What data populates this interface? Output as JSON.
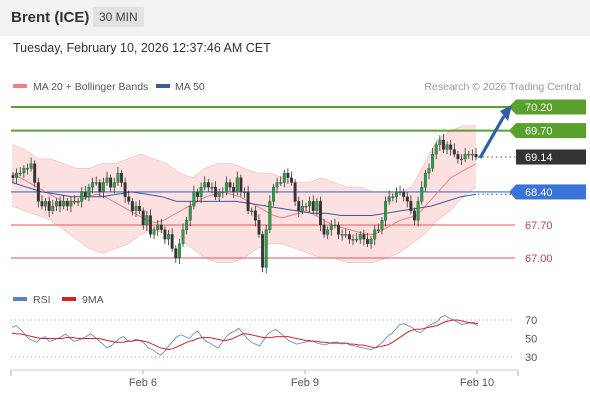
{
  "header": {
    "instrument": "Brent (ICE)",
    "timeframe": "30 MIN"
  },
  "timestamp": "Tuesday, February 10, 2026 12:37:46 AM CET",
  "legend": {
    "ma20": "MA 20 + Bollinger Bands",
    "ma50": "MA 50",
    "rsi": "RSI",
    "ma9": "9MA",
    "ma20_color": "#f08080",
    "ma50_color": "#3c5a99",
    "rsi_color": "#5b7fd6",
    "ma9_color": "#e02020"
  },
  "copyright": "Research © 2026 Trading Central",
  "chart_data": {
    "type": "line",
    "instrument": "Brent (ICE)",
    "timeframe": "30 MIN",
    "x_ticks": [
      "Feb 6",
      "Feb 9",
      "Feb 10"
    ],
    "price_range": [
      66.6,
      70.35
    ],
    "levels": [
      {
        "label": "70.20",
        "value": 70.2,
        "kind": "resistance",
        "color": "#5aa02c"
      },
      {
        "label": "69.70",
        "value": 69.7,
        "kind": "resistance",
        "color": "#5aa02c"
      },
      {
        "label": "69.14",
        "value": 69.14,
        "kind": "last",
        "color": "#333333"
      },
      {
        "label": "68.40",
        "value": 68.4,
        "kind": "pivot",
        "color": "#3a74d8"
      },
      {
        "label": "67.70",
        "value": 67.7,
        "kind": "support",
        "color": "#e05a5a"
      },
      {
        "label": "67.00",
        "value": 67.0,
        "kind": "support",
        "color": "#e05a5a"
      }
    ],
    "forecast_arrow": {
      "from": 69.14,
      "to": 70.2,
      "color": "#2e5fa8"
    },
    "price_series": [
      68.7,
      68.8,
      68.8,
      68.9,
      68.9,
      69.0,
      68.6,
      68.2,
      68.1,
      68.2,
      68.0,
      68.1,
      68.2,
      68.1,
      68.2,
      68.1,
      68.2,
      68.2,
      68.2,
      68.4,
      68.3,
      68.5,
      68.6,
      68.6,
      68.4,
      68.6,
      68.7,
      68.5,
      68.6,
      68.8,
      68.6,
      68.3,
      68.2,
      68.0,
      68.1,
      68.0,
      67.7,
      67.9,
      67.5,
      67.6,
      67.7,
      67.6,
      67.4,
      67.5,
      67.2,
      67.0,
      67.3,
      67.6,
      67.8,
      68.1,
      68.4,
      68.3,
      68.5,
      68.6,
      68.5,
      68.5,
      68.3,
      68.4,
      68.4,
      68.6,
      68.5,
      68.4,
      68.7,
      68.4,
      68.4,
      68.0,
      68.0,
      67.8,
      67.5,
      66.8,
      67.6,
      68.2,
      68.5,
      68.6,
      68.6,
      68.8,
      68.7,
      68.6,
      68.2,
      68.0,
      68.1,
      68.1,
      68.2,
      68.0,
      68.2,
      67.7,
      67.5,
      67.6,
      67.7,
      67.7,
      67.5,
      67.5,
      67.5,
      67.4,
      67.4,
      67.4,
      67.5,
      67.4,
      67.3,
      67.4,
      67.6,
      67.6,
      67.8,
      68.2,
      68.3,
      68.3,
      68.4,
      68.4,
      68.3,
      68.2,
      68.0,
      67.8,
      68.2,
      68.5,
      68.8,
      68.9,
      69.2,
      69.4,
      69.5,
      69.3,
      69.4,
      69.3,
      69.2,
      69.1,
      69.1,
      69.2,
      69.2,
      69.2,
      69.14
    ],
    "ma20": [
      68.8,
      68.7,
      68.6,
      68.5,
      68.4,
      68.3,
      68.2,
      68.2,
      68.2,
      68.3,
      68.35,
      68.3,
      68.2,
      68.1,
      68.0,
      67.9,
      67.8,
      67.75,
      67.8,
      67.9,
      68.0,
      68.1,
      68.2,
      68.3,
      68.35,
      68.4,
      68.35,
      68.3,
      68.2,
      68.1,
      68.0,
      67.9,
      67.85,
      67.9,
      67.95,
      68.0,
      67.9,
      67.8,
      67.7,
      67.65,
      67.6,
      67.55,
      67.5,
      67.5,
      67.6,
      67.7,
      67.8,
      67.85,
      67.9,
      68.1,
      68.3,
      68.5,
      68.7,
      68.8,
      68.9,
      69.0
    ],
    "ma50": [
      68.6,
      68.5,
      68.4,
      68.35,
      68.3,
      68.3,
      68.3,
      68.35,
      68.4,
      68.35,
      68.3,
      68.2,
      68.2,
      68.2,
      68.2,
      68.2,
      68.15,
      68.1,
      68.05,
      68.0,
      67.95,
      67.95,
      67.9,
      67.9,
      67.9,
      67.95,
      68.0,
      68.05,
      68.1,
      68.2,
      68.3,
      68.35
    ],
    "bollinger_upper": [
      69.4,
      69.3,
      69.1,
      69.1,
      69.0,
      68.9,
      68.9,
      69.0,
      69.0,
      69.1,
      69.2,
      69.1,
      69.0,
      68.8,
      68.7,
      68.9,
      69.0,
      69.0,
      68.9,
      68.8,
      68.8,
      68.7,
      68.6,
      68.6,
      68.7,
      68.6,
      68.5,
      68.5,
      68.4,
      68.4,
      68.4,
      68.5,
      69.0,
      69.5,
      69.7,
      69.8,
      69.8
    ],
    "bollinger_lower": [
      68.1,
      68.0,
      67.9,
      67.8,
      67.6,
      67.4,
      67.2,
      67.1,
      67.2,
      67.3,
      67.5,
      67.6,
      67.5,
      67.4,
      67.2,
      67.0,
      66.9,
      66.9,
      67.0,
      67.2,
      67.3,
      67.3,
      67.2,
      67.1,
      67.0,
      67.0,
      66.9,
      66.9,
      66.9,
      67.0,
      67.1,
      67.3,
      67.5,
      67.8,
      68.0,
      68.3,
      68.5
    ],
    "rsi_range": [
      15,
      80
    ],
    "rsi_ticks": [
      70,
      50,
      30
    ],
    "rsi": [
      62,
      64,
      60,
      55,
      50,
      48,
      46,
      50,
      52,
      47,
      48,
      50,
      52,
      55,
      51,
      47,
      48,
      50,
      52,
      55,
      52,
      48,
      44,
      40,
      42,
      46,
      50,
      52,
      48,
      47,
      49,
      48,
      45,
      40,
      38,
      35,
      32,
      36,
      42,
      47,
      52,
      54,
      52,
      50,
      55,
      58,
      52,
      47,
      45,
      42,
      40,
      46,
      52,
      56,
      58,
      61,
      56,
      50,
      46,
      44,
      42,
      48,
      55,
      58,
      60,
      56,
      52,
      48,
      46,
      44,
      45,
      46,
      47,
      47,
      45,
      44,
      43,
      45,
      46,
      46,
      44,
      45,
      43,
      42,
      41,
      40,
      39,
      38,
      40,
      43,
      47,
      52,
      55,
      60,
      65,
      66,
      64,
      62,
      58,
      56,
      60,
      64,
      66,
      68,
      73,
      75,
      72,
      70,
      68,
      65,
      66,
      67,
      66,
      64
    ],
    "rsi_ma9": [
      56,
      55,
      55,
      54,
      53,
      52,
      51,
      50,
      50,
      50,
      50,
      50,
      50,
      51,
      51,
      51,
      50,
      50,
      50,
      50,
      50,
      50,
      49,
      48,
      47,
      46,
      46,
      46,
      47,
      47,
      48,
      48,
      47,
      46,
      44,
      42,
      40,
      39,
      38,
      39,
      41,
      43,
      45,
      47,
      48,
      50,
      51,
      51,
      51,
      50,
      49,
      48,
      48,
      49,
      51,
      53,
      55,
      55,
      54,
      53,
      52,
      51,
      51,
      51,
      52,
      52,
      52,
      52,
      51,
      50,
      49,
      48,
      48,
      47,
      47,
      46,
      46,
      45,
      45,
      45,
      45,
      45,
      44,
      44,
      43,
      43,
      42,
      41,
      40,
      41,
      42,
      43,
      45,
      48,
      51,
      54,
      57,
      59,
      60,
      60,
      61,
      62,
      63,
      64,
      66,
      68,
      69,
      70,
      70,
      69,
      68,
      67,
      67,
      66
    ]
  }
}
